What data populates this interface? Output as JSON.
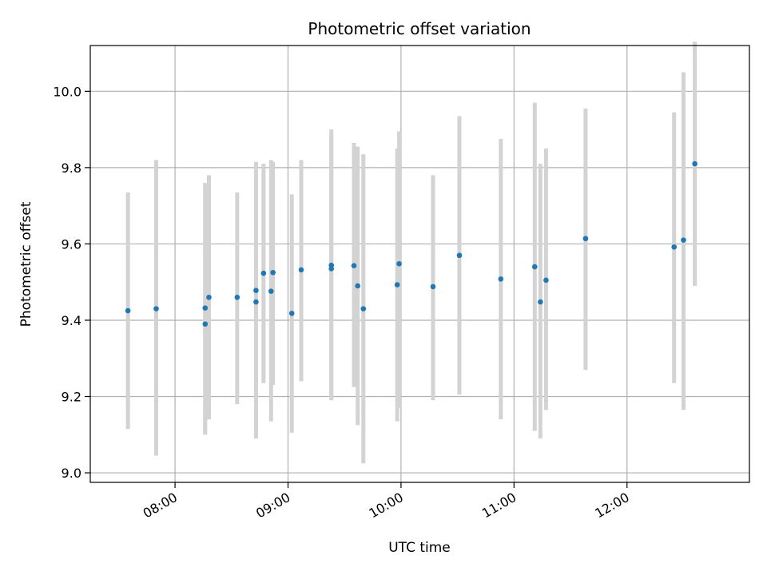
{
  "chart_data": {
    "type": "scatter",
    "title": "Photometric offset variation",
    "xlabel": "UTC time",
    "ylabel": "Photometric offset",
    "x_tick_labels": [
      "08:00",
      "09:00",
      "10:00",
      "11:00",
      "12:00"
    ],
    "x_tick_values": [
      "08:00",
      "09:00",
      "10:00",
      "11:00",
      "12:00"
    ],
    "y_tick_labels": [
      "9.0",
      "9.2",
      "9.4",
      "9.6",
      "9.8",
      "10.0"
    ],
    "y_tick_values": [
      9.0,
      9.2,
      9.4,
      9.6,
      9.8,
      10.0
    ],
    "xlim": [
      "07:15",
      "13:05"
    ],
    "ylim": [
      8.975,
      10.12
    ],
    "grid": true,
    "colors": {
      "point": "#1f77b4",
      "errorbar": "#d3d3d3",
      "grid": "#b0b0b0"
    },
    "series": [
      {
        "x": [
          "07:35",
          "07:50",
          "08:16",
          "08:16",
          "08:18",
          "08:33",
          "08:43",
          "08:43",
          "08:47",
          "08:51",
          "08:52",
          "09:02",
          "09:07",
          "09:23",
          "09:23",
          "09:35",
          "09:37",
          "09:40",
          "09:58",
          "09:59",
          "10:17",
          "10:31",
          "10:53",
          "11:11",
          "11:14",
          "11:17",
          "11:38",
          "12:25",
          "12:30",
          "12:36"
        ],
        "y": [
          9.425,
          9.43,
          9.432,
          9.39,
          9.46,
          9.46,
          9.478,
          9.448,
          9.523,
          9.476,
          9.525,
          9.418,
          9.532,
          9.544,
          9.535,
          9.543,
          9.49,
          9.43,
          9.493,
          9.548,
          9.488,
          9.57,
          9.508,
          9.54,
          9.448,
          9.505,
          9.614,
          9.592,
          9.61,
          9.81
        ],
        "err_low": [
          9.115,
          9.045,
          9.105,
          9.1,
          9.14,
          9.18,
          9.09,
          9.09,
          9.235,
          9.135,
          9.23,
          9.105,
          9.24,
          9.19,
          9.195,
          9.225,
          9.125,
          9.025,
          9.135,
          9.17,
          9.19,
          9.205,
          9.14,
          9.11,
          9.09,
          9.165,
          9.27,
          9.235,
          9.165,
          9.49
        ],
        "err_high": [
          9.735,
          9.82,
          9.76,
          9.76,
          9.78,
          9.735,
          9.815,
          9.815,
          9.81,
          9.82,
          9.815,
          9.73,
          9.82,
          9.9,
          9.875,
          9.865,
          9.855,
          9.835,
          9.85,
          9.895,
          9.78,
          9.935,
          9.875,
          9.97,
          9.81,
          9.85,
          9.955,
          9.945,
          10.05,
          10.13
        ]
      }
    ]
  }
}
